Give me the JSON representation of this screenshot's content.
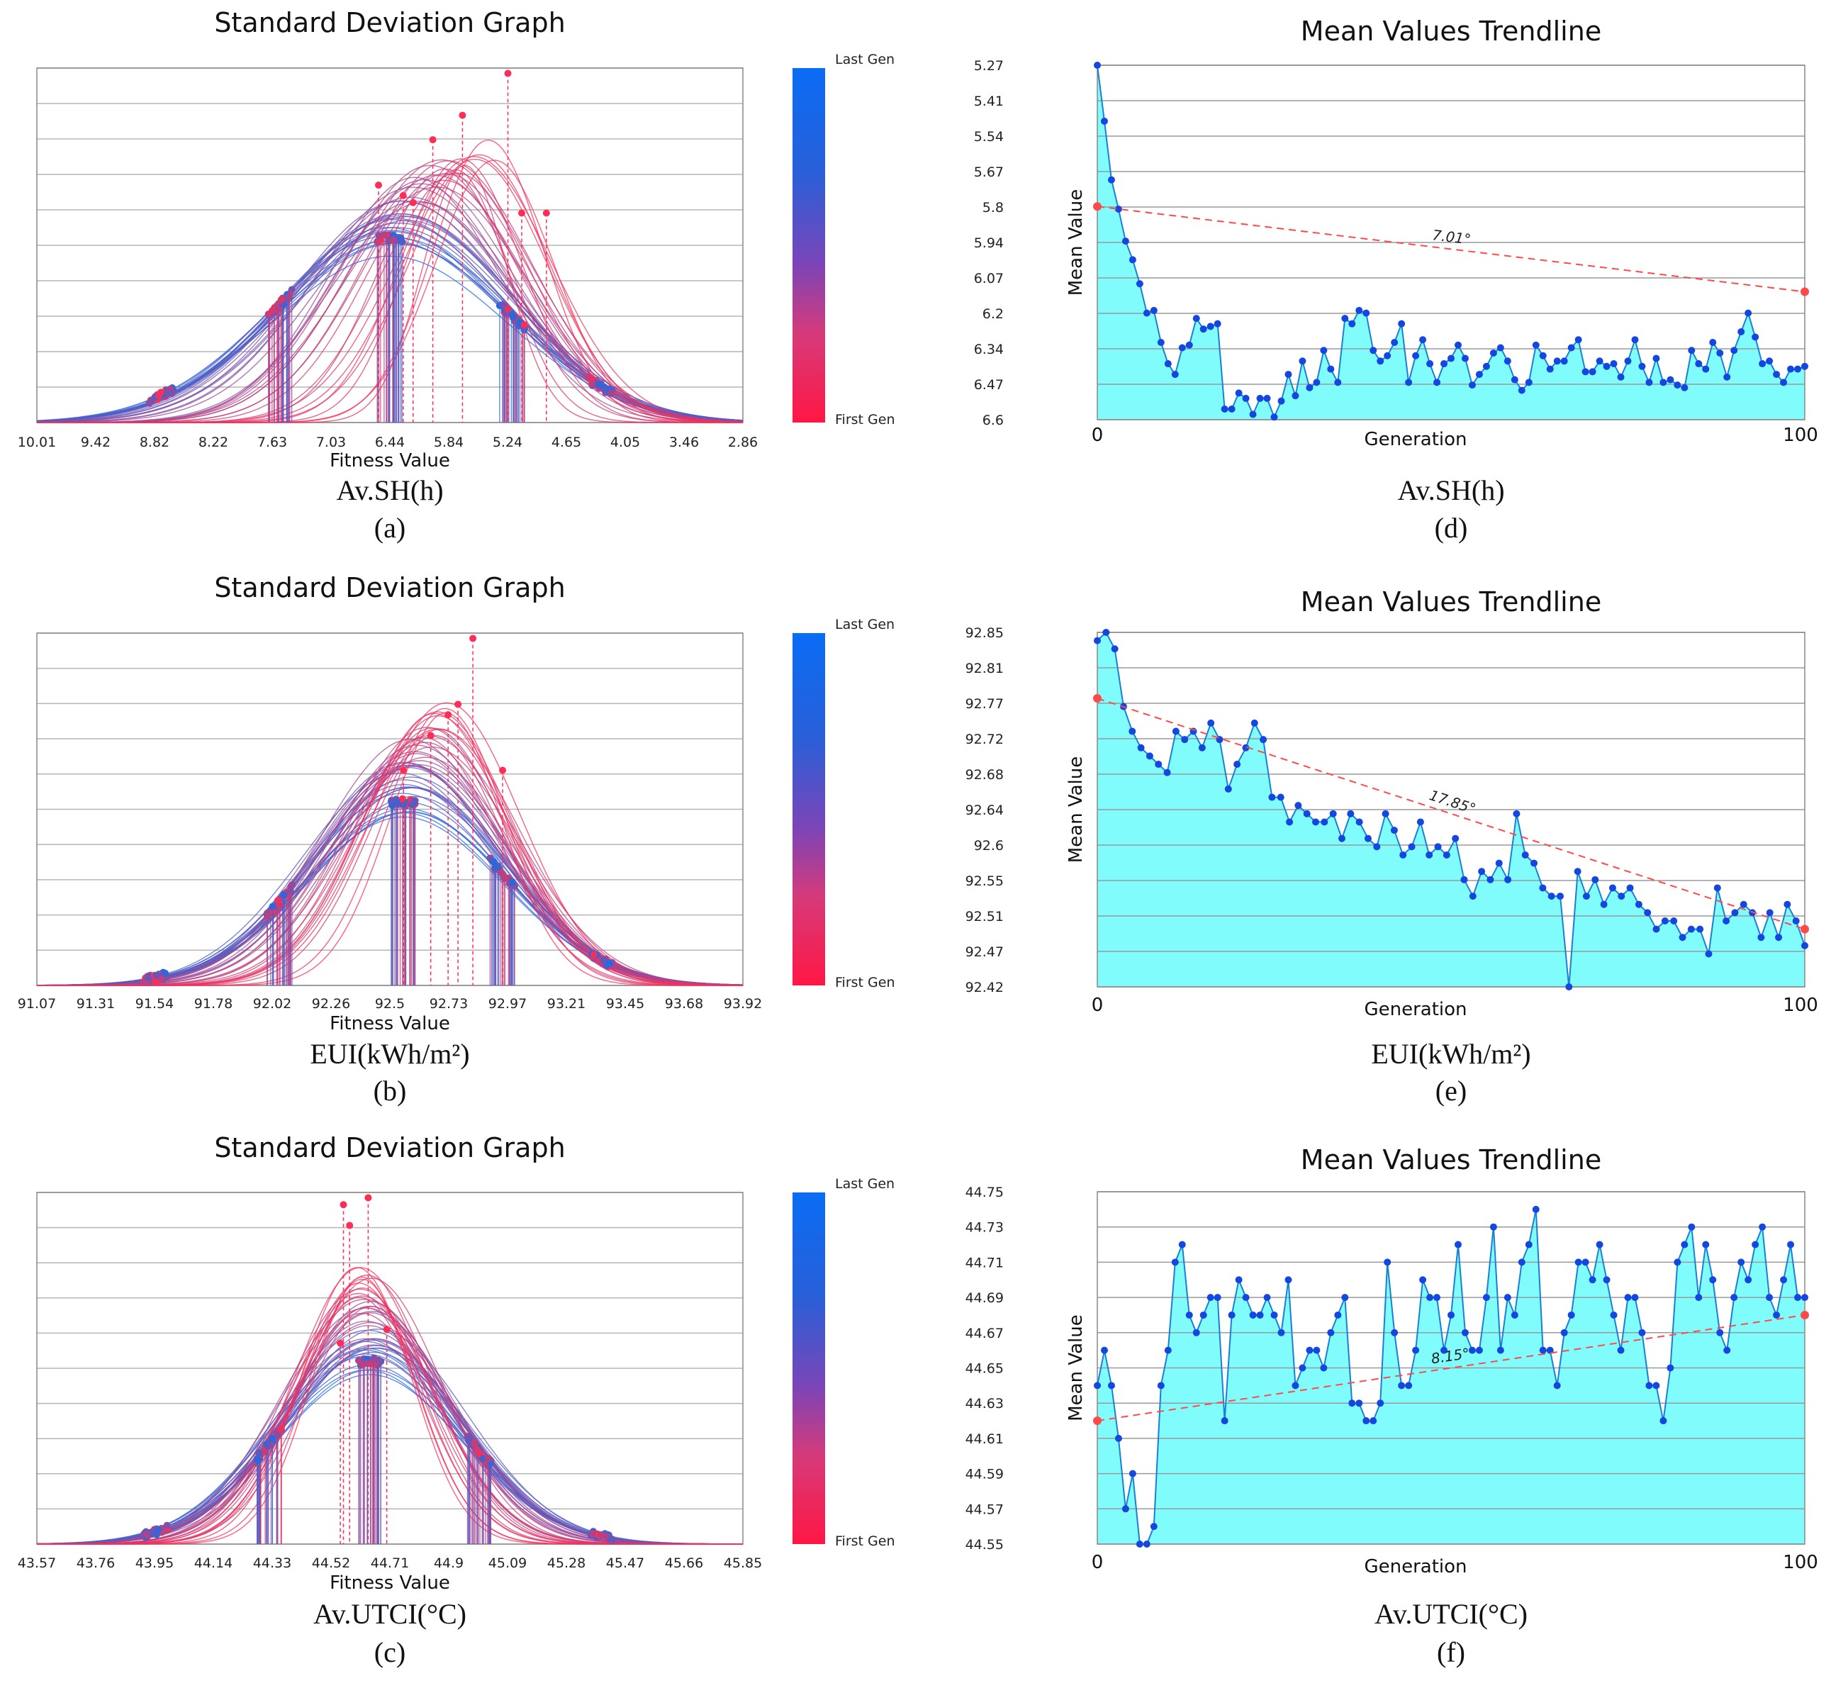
{
  "colorbar": {
    "top_label": "Last Gen",
    "bottom_label": "First Gen",
    "top_color": "#0a6cf5",
    "bottom_color": "#ff1744"
  },
  "colors": {
    "early_gen": "#ff2d55",
    "late_gen": "#1e6be6",
    "trend_fill": "#80fcfc",
    "trend_line": "#1a7fd6",
    "trend_point": "#1447e0",
    "fit_line": "#ff4a4a",
    "grid": "#b5b5b5"
  },
  "chart_data": [
    {
      "panel": "(a)",
      "type": "line",
      "title": "Standard Deviation Graph",
      "xlabel": "Fitness Value",
      "metric": "Av.SH(h)",
      "x_ticks": [
        "10.01",
        "9.42",
        "8.82",
        "8.22",
        "7.63",
        "7.03",
        "6.44",
        "5.84",
        "5.24",
        "4.65",
        "4.05",
        "3.46",
        "2.86"
      ],
      "x_range": [
        10.01,
        2.86
      ],
      "x_reversed": true,
      "distributions": {
        "last_gen": {
          "mean": 6.44,
          "std": 1.18
        },
        "first_gen": {
          "mean": 5.44,
          "std": 0.35
        }
      },
      "data_points": {
        "clusters": [
          8.75,
          7.55,
          6.44,
          5.2,
          4.3
        ],
        "first_gen_peaks": [
          [
            5.24,
            1.0
          ],
          [
            5.7,
            0.88
          ],
          [
            6.0,
            0.81
          ],
          [
            5.1,
            0.6
          ],
          [
            4.85,
            0.6
          ],
          [
            6.2,
            0.63
          ],
          [
            6.55,
            0.68
          ],
          [
            6.3,
            0.65
          ]
        ]
      }
    },
    {
      "panel": "(b)",
      "type": "line",
      "title": "Standard Deviation Graph",
      "xlabel": "Fitness Value",
      "metric": "EUI(kWh/m²)",
      "x_ticks": [
        "91.07",
        "91.31",
        "91.54",
        "91.78",
        "92.02",
        "92.26",
        "92.5",
        "92.73",
        "92.97",
        "93.21",
        "93.45",
        "93.68",
        "93.92"
      ],
      "x_range": [
        91.07,
        93.92
      ],
      "x_reversed": false,
      "distributions": {
        "last_gen": {
          "mean": 92.55,
          "std": 0.4
        },
        "first_gen": {
          "mean": 92.72,
          "std": 0.24
        }
      },
      "data_points": {
        "clusters": [
          91.55,
          92.05,
          92.55,
          92.95,
          93.35
        ],
        "first_gen_peaks": [
          [
            92.83,
            1.0
          ],
          [
            92.77,
            0.81
          ],
          [
            92.66,
            0.72
          ],
          [
            92.95,
            0.62
          ],
          [
            92.73,
            0.78
          ],
          [
            92.55,
            0.62
          ]
        ]
      }
    },
    {
      "panel": "(c)",
      "type": "line",
      "title": "Standard Deviation Graph",
      "xlabel": "Fitness Value",
      "metric": "Av.UTCI(°C)",
      "x_ticks": [
        "43.57",
        "43.76",
        "43.95",
        "44.14",
        "44.33",
        "44.52",
        "44.71",
        "44.9",
        "45.09",
        "45.28",
        "45.47",
        "45.66",
        "45.85"
      ],
      "x_range": [
        43.57,
        45.85
      ],
      "x_reversed": false,
      "distributions": {
        "last_gen": {
          "mean": 44.65,
          "std": 0.3
        },
        "first_gen": {
          "mean": 44.62,
          "std": 0.16
        }
      },
      "data_points": {
        "clusters": [
          43.95,
          44.32,
          44.65,
          45.0,
          45.4
        ],
        "first_gen_peaks": [
          [
            44.64,
            1.0
          ],
          [
            44.56,
            0.98
          ],
          [
            44.58,
            0.92
          ],
          [
            44.55,
            0.58
          ],
          [
            44.7,
            0.62
          ]
        ]
      }
    },
    {
      "panel": "(d)",
      "type": "area",
      "title": "Mean Values Trendline",
      "xlabel": "Generation",
      "ylabel": "Mean Value",
      "metric": "Av.SH(h)",
      "x_ticks": [
        "0",
        "100"
      ],
      "x_range": [
        0,
        100
      ],
      "y_ticks": [
        "5.27",
        "5.41",
        "5.54",
        "5.67",
        "5.8",
        "5.94",
        "6.07",
        "6.2",
        "6.34",
        "6.47",
        "6.6"
      ],
      "y_range": [
        5.27,
        6.6
      ],
      "y_inverted": true,
      "trend": {
        "start": 5.8,
        "end": 6.12,
        "angle_label": "7.01°"
      },
      "series": [
        5.27,
        5.48,
        5.7,
        5.81,
        5.93,
        6.0,
        6.09,
        6.2,
        6.19,
        6.31,
        6.39,
        6.43,
        6.33,
        6.32,
        6.22,
        6.26,
        6.25,
        6.24,
        6.56,
        6.56,
        6.5,
        6.52,
        6.58,
        6.52,
        6.52,
        6.59,
        6.53,
        6.43,
        6.51,
        6.38,
        6.48,
        6.46,
        6.34,
        6.41,
        6.46,
        6.22,
        6.24,
        6.19,
        6.2,
        6.34,
        6.38,
        6.36,
        6.31,
        6.24,
        6.46,
        6.36,
        6.3,
        6.39,
        6.46,
        6.39,
        6.37,
        6.32,
        6.37,
        6.47,
        6.43,
        6.4,
        6.35,
        6.33,
        6.38,
        6.45,
        6.49,
        6.46,
        6.32,
        6.36,
        6.41,
        6.38,
        6.38,
        6.33,
        6.3,
        6.42,
        6.42,
        6.38,
        6.4,
        6.39,
        6.44,
        6.38,
        6.3,
        6.4,
        6.46,
        6.37,
        6.46,
        6.45,
        6.47,
        6.48,
        6.34,
        6.39,
        6.41,
        6.31,
        6.35,
        6.44,
        6.34,
        6.27,
        6.2,
        6.29,
        6.39,
        6.38,
        6.43,
        6.46,
        6.41,
        6.41,
        6.4
      ]
    },
    {
      "panel": "(e)",
      "type": "area",
      "title": "Mean Values Trendline",
      "xlabel": "Generation",
      "ylabel": "Mean Value",
      "metric": "EUI(kWh/m²)",
      "x_ticks": [
        "0",
        "100"
      ],
      "x_range": [
        0,
        100
      ],
      "y_ticks": [
        "92.85",
        "92.81",
        "92.77",
        "92.72",
        "92.68",
        "92.64",
        "92.6",
        "92.55",
        "92.51",
        "92.47",
        "92.42"
      ],
      "y_range": [
        92.42,
        92.85
      ],
      "trend": {
        "start": 92.77,
        "end": 92.49,
        "angle_label": "17.85°"
      },
      "series": [
        92.84,
        92.85,
        92.83,
        92.76,
        92.73,
        92.71,
        92.7,
        92.69,
        92.68,
        92.73,
        92.72,
        92.73,
        92.71,
        92.74,
        92.72,
        92.66,
        92.69,
        92.71,
        92.74,
        92.72,
        92.65,
        92.65,
        92.62,
        92.64,
        92.63,
        92.62,
        92.62,
        92.63,
        92.6,
        92.63,
        92.62,
        92.6,
        92.59,
        92.63,
        92.61,
        92.58,
        92.59,
        92.62,
        92.58,
        92.59,
        92.58,
        92.6,
        92.55,
        92.53,
        92.56,
        92.55,
        92.57,
        92.55,
        92.63,
        92.58,
        92.57,
        92.54,
        92.53,
        92.53,
        92.42,
        92.56,
        92.53,
        92.55,
        92.52,
        92.54,
        92.53,
        92.54,
        92.52,
        92.51,
        92.49,
        92.5,
        92.5,
        92.48,
        92.49,
        92.49,
        92.46,
        92.54,
        92.5,
        92.51,
        92.52,
        92.51,
        92.48,
        92.51,
        92.48,
        92.52,
        92.5,
        92.47
      ]
    },
    {
      "panel": "(f)",
      "type": "area",
      "title": "Mean Values Trendline",
      "xlabel": "Generation",
      "ylabel": "Mean Value",
      "metric": "Av.UTCI(°C)",
      "x_ticks": [
        "0",
        "100"
      ],
      "x_range": [
        0,
        100
      ],
      "y_ticks": [
        "44.75",
        "44.73",
        "44.71",
        "44.69",
        "44.67",
        "44.65",
        "44.63",
        "44.61",
        "44.59",
        "44.57",
        "44.55"
      ],
      "y_range": [
        44.55,
        44.75
      ],
      "trend": {
        "start": 44.62,
        "end": 44.68,
        "angle_label": "8.15°"
      },
      "series": [
        44.64,
        44.66,
        44.64,
        44.61,
        44.57,
        44.59,
        44.55,
        44.55,
        44.56,
        44.64,
        44.66,
        44.71,
        44.72,
        44.68,
        44.67,
        44.68,
        44.69,
        44.69,
        44.62,
        44.68,
        44.7,
        44.69,
        44.68,
        44.68,
        44.69,
        44.68,
        44.67,
        44.7,
        44.64,
        44.65,
        44.66,
        44.66,
        44.65,
        44.67,
        44.68,
        44.69,
        44.63,
        44.63,
        44.62,
        44.62,
        44.63,
        44.71,
        44.67,
        44.64,
        44.64,
        44.66,
        44.7,
        44.69,
        44.69,
        44.66,
        44.68,
        44.72,
        44.67,
        44.66,
        44.66,
        44.69,
        44.73,
        44.66,
        44.69,
        44.68,
        44.71,
        44.72,
        44.74,
        44.66,
        44.66,
        44.64,
        44.67,
        44.68,
        44.71,
        44.71,
        44.7,
        44.72,
        44.7,
        44.68,
        44.66,
        44.69,
        44.69,
        44.67,
        44.64,
        44.64,
        44.62,
        44.65,
        44.71,
        44.72,
        44.73,
        44.69,
        44.72,
        44.7,
        44.67,
        44.66,
        44.69,
        44.71,
        44.7,
        44.72,
        44.73,
        44.69,
        44.68,
        44.7,
        44.72,
        44.69,
        44.69
      ]
    }
  ]
}
